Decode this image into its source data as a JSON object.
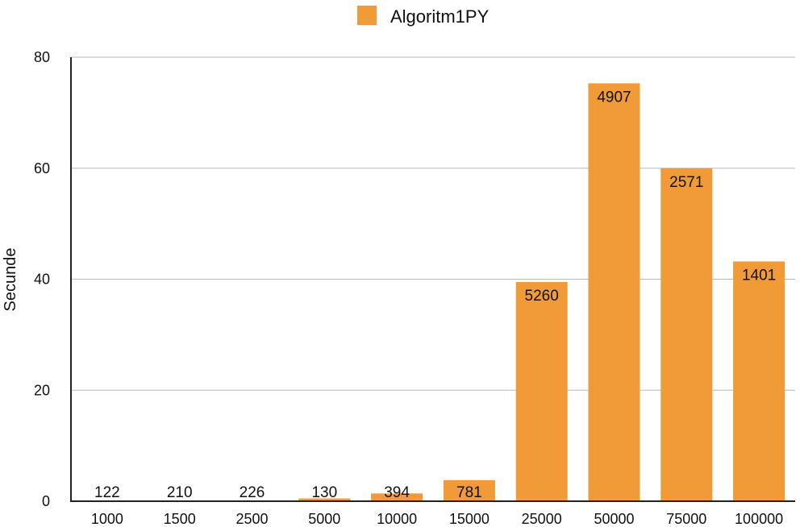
{
  "chart_data": {
    "type": "bar",
    "title": "",
    "xlabel": "",
    "ylabel": "Secunde",
    "ylim": [
      0,
      80
    ],
    "yticks": [
      0,
      20,
      40,
      60,
      80
    ],
    "grid": true,
    "legend_position": "top-center",
    "categories": [
      "1000",
      "1500",
      "2500",
      "5000",
      "10000",
      "15000",
      "25000",
      "50000",
      "75000",
      "100000"
    ],
    "series": [
      {
        "name": "Algoritm1PY",
        "color": "#f09a38",
        "values": [
          0.1,
          0.1,
          0.1,
          0.5,
          1.4,
          3.8,
          39.5,
          75.3,
          60.0,
          43.2
        ],
        "data_labels": [
          "122",
          "210",
          "226",
          "130",
          "394",
          "781",
          "5260",
          "4907",
          "2571",
          "1401"
        ]
      }
    ]
  }
}
